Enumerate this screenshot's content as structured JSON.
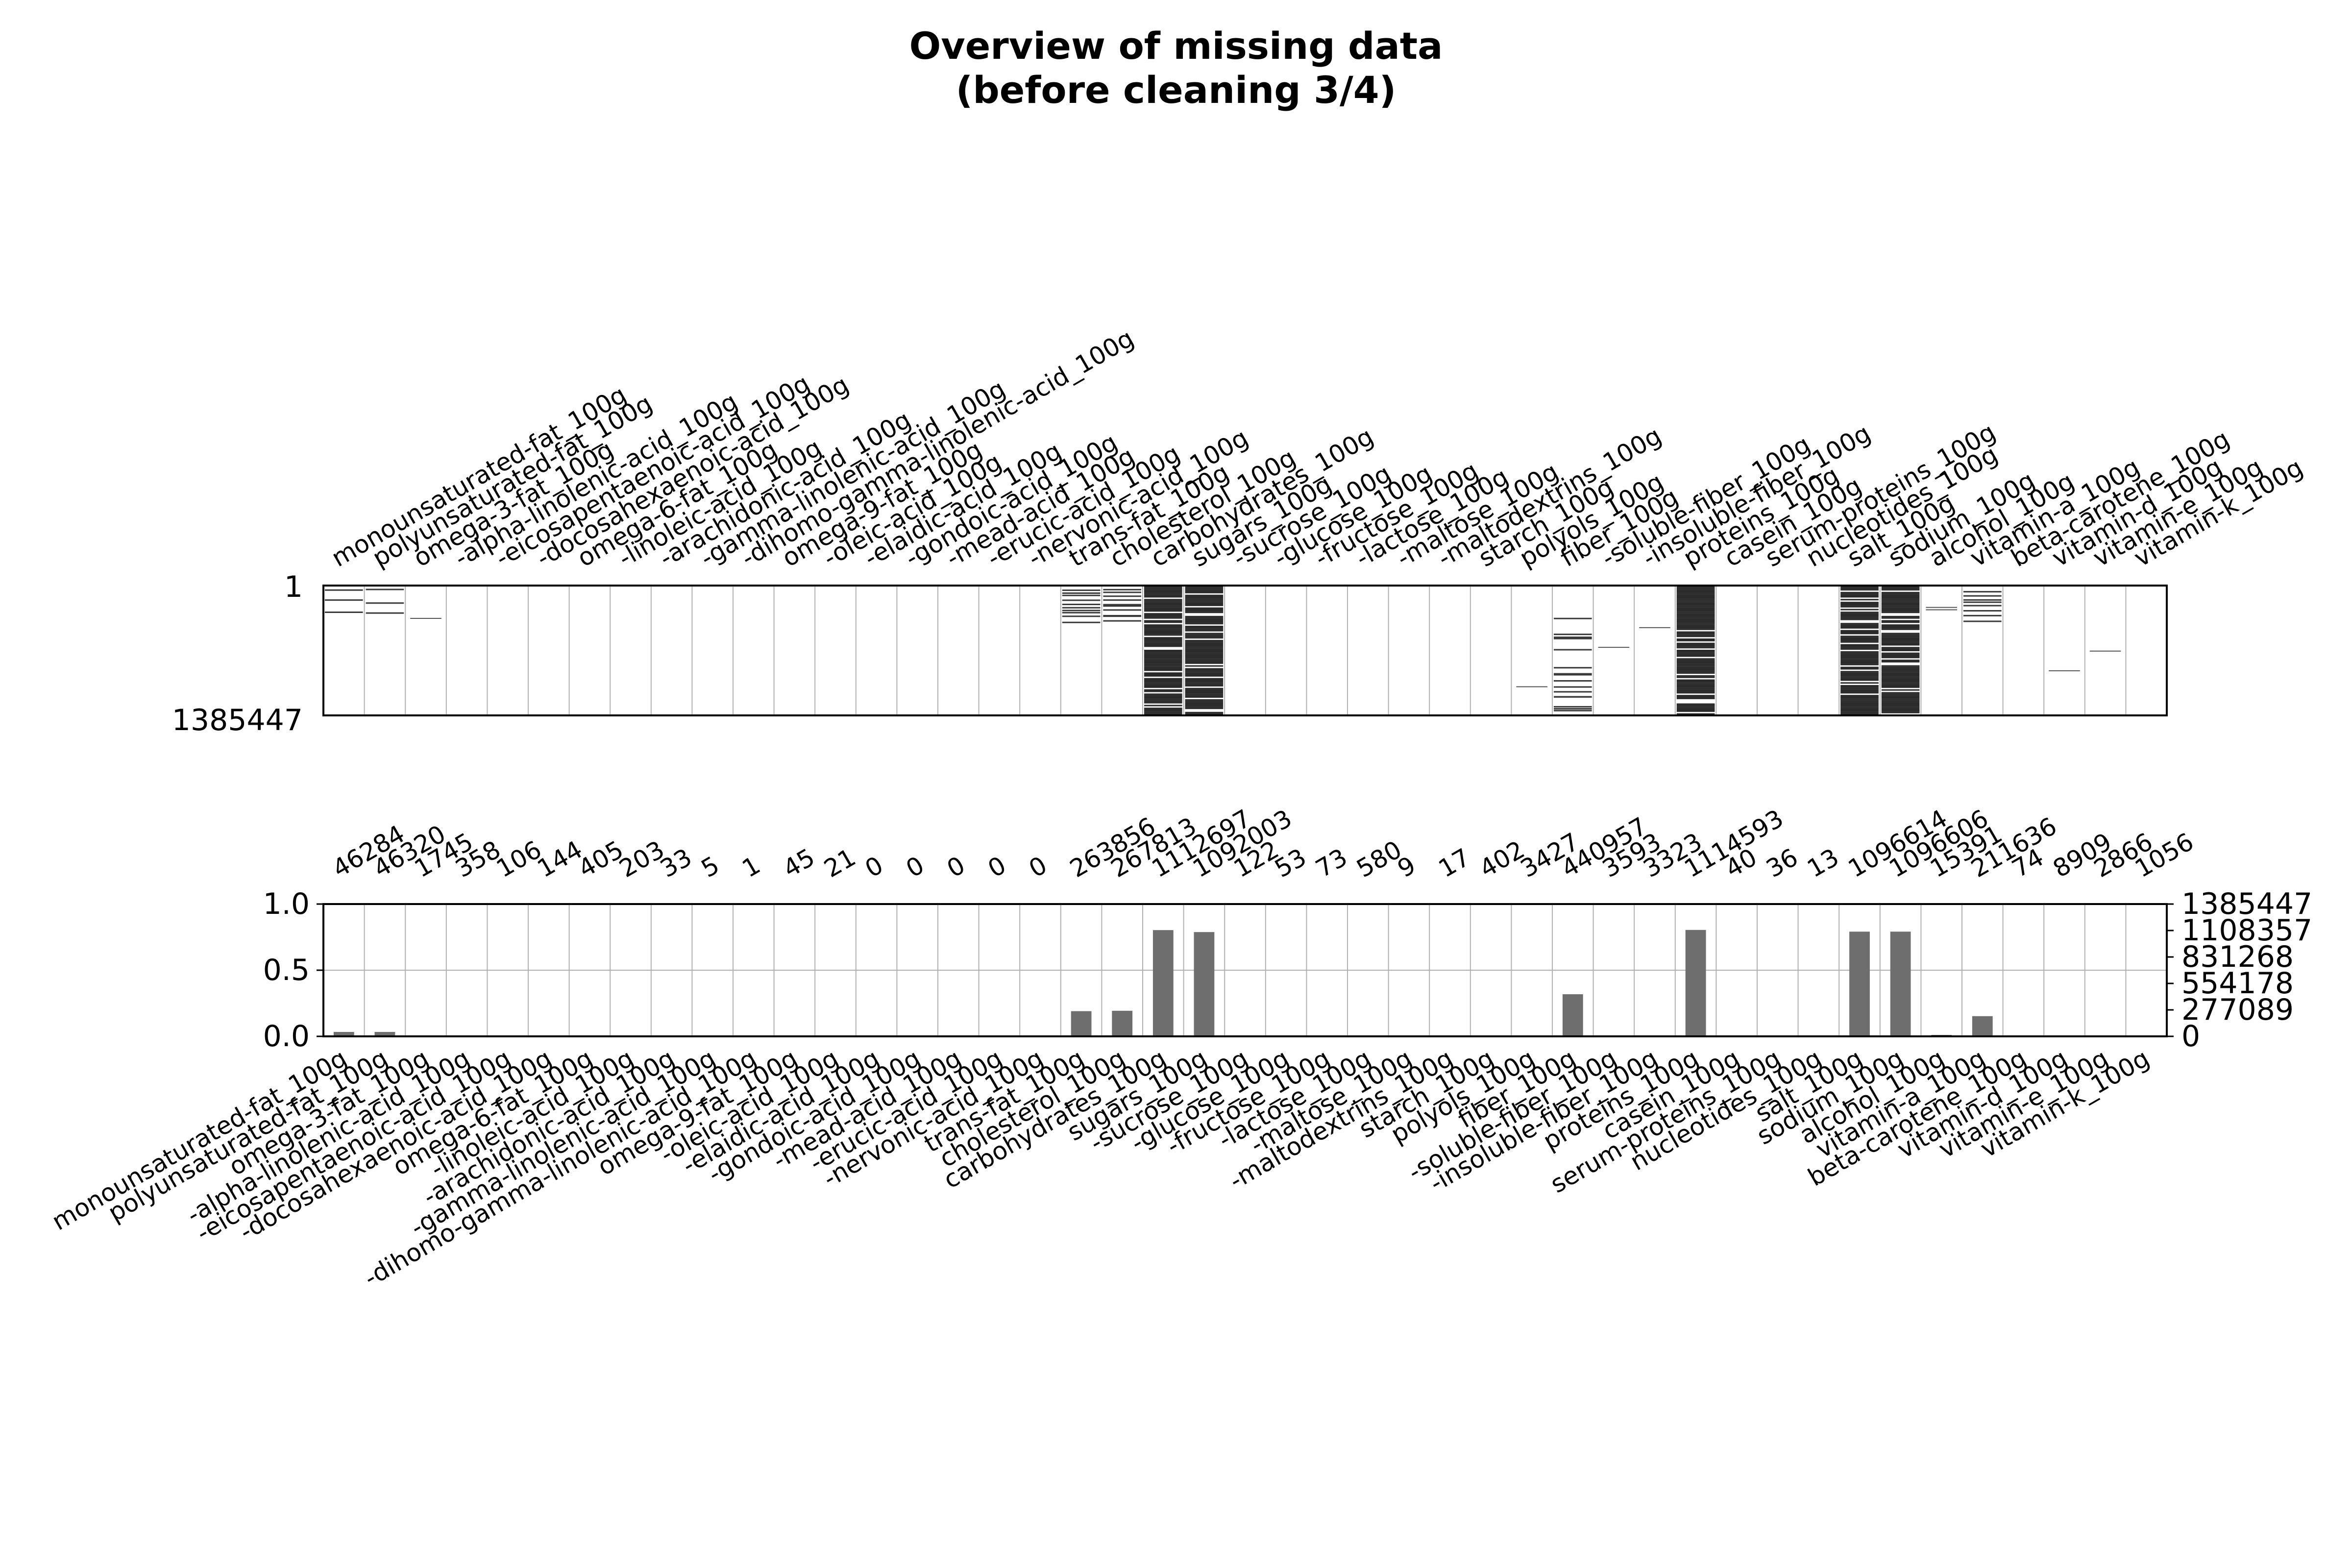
{
  "figure": {
    "title_lines": [
      "Overview of missing data",
      "(before cleaning 3/4)"
    ]
  },
  "chart_data": [
    {
      "type": "heatmap",
      "description_kind": "missingno matrix",
      "columns": [
        "monounsaturated-fat_100g",
        "polyunsaturated-fat_100g",
        "omega-3-fat_100g",
        "-alpha-linolenic-acid_100g",
        "-eicosapentaenoic-acid_100g",
        "-docosahexaenoic-acid_100g",
        "omega-6-fat_100g",
        "-linoleic-acid_100g",
        "-arachidonic-acid_100g",
        "-gamma-linolenic-acid_100g",
        "-dihomo-gamma-linolenic-acid_100g",
        "omega-9-fat_100g",
        "-oleic-acid_100g",
        "-elaidic-acid_100g",
        "-gondoic-acid_100g",
        "-mead-acid_100g",
        "-erucic-acid_100g",
        "-nervonic-acid_100g",
        "trans-fat_100g",
        "cholesterol_100g",
        "carbohydrates_100g",
        "sugars_100g",
        "-sucrose_100g",
        "-glucose_100g",
        "-fructose_100g",
        "-lactose_100g",
        "-maltose_100g",
        "-maltodextrins_100g",
        "starch_100g",
        "polyols_100g",
        "fiber_100g",
        "-soluble-fiber_100g",
        "-insoluble-fiber_100g",
        "proteins_100g",
        "casein_100g",
        "serum-proteins_100g",
        "nucleotides_100g",
        "salt_100g",
        "sodium_100g",
        "alcohol_100g",
        "vitamin-a_100g",
        "beta-carotene_100g",
        "vitamin-d_100g",
        "vitamin-e_100g",
        "vitamin-k_100g"
      ],
      "y_tick_labels": [
        "1",
        "1385447"
      ],
      "total_rows": 1385447,
      "grid": true
    },
    {
      "type": "bar",
      "categories": [
        "monounsaturated-fat_100g",
        "polyunsaturated-fat_100g",
        "omega-3-fat_100g",
        "-alpha-linolenic-acid_100g",
        "-eicosapentaenoic-acid_100g",
        "-docosahexaenoic-acid_100g",
        "omega-6-fat_100g",
        "-linoleic-acid_100g",
        "-arachidonic-acid_100g",
        "-gamma-linolenic-acid_100g",
        "-dihomo-gamma-linolenic-acid_100g",
        "omega-9-fat_100g",
        "-oleic-acid_100g",
        "-elaidic-acid_100g",
        "-gondoic-acid_100g",
        "-mead-acid_100g",
        "-erucic-acid_100g",
        "-nervonic-acid_100g",
        "trans-fat_100g",
        "cholesterol_100g",
        "carbohydrates_100g",
        "sugars_100g",
        "-sucrose_100g",
        "-glucose_100g",
        "-fructose_100g",
        "-lactose_100g",
        "-maltose_100g",
        "-maltodextrins_100g",
        "starch_100g",
        "polyols_100g",
        "fiber_100g",
        "-soluble-fiber_100g",
        "-insoluble-fiber_100g",
        "proteins_100g",
        "casein_100g",
        "serum-proteins_100g",
        "nucleotides_100g",
        "salt_100g",
        "sodium_100g",
        "alcohol_100g",
        "vitamin-a_100g",
        "beta-carotene_100g",
        "vitamin-d_100g",
        "vitamin-e_100g",
        "vitamin-k_100g"
      ],
      "values": [
        46284,
        46320,
        1745,
        358,
        106,
        144,
        405,
        203,
        33,
        5,
        1,
        45,
        21,
        0,
        0,
        0,
        0,
        0,
        263856,
        267813,
        1112697,
        1092003,
        122,
        53,
        73,
        580,
        9,
        17,
        402,
        3427,
        440957,
        3593,
        3323,
        1114593,
        40,
        36,
        13,
        1096614,
        1096606,
        15391,
        211636,
        74,
        8909,
        2866,
        1056
      ],
      "value_labels": [
        "46284",
        "46320",
        "1745",
        "358",
        "106",
        "144",
        "405",
        "203",
        "33",
        "5",
        "1",
        "45",
        "21",
        "0",
        "0",
        "0",
        "0",
        "0",
        "263856",
        "267813",
        "1112697",
        "1092003",
        "122",
        "53",
        "73",
        "580",
        "9",
        "17",
        "402",
        "3427",
        "440957",
        "3593",
        "3323",
        "1114593",
        "40",
        "36",
        "13",
        "1096614",
        "1096606",
        "15391",
        "211636",
        "74",
        "8909",
        "2866",
        "1056"
      ],
      "total": 1385447,
      "ylim": [
        0,
        1
      ],
      "left_ticks": [
        "0.0",
        "0.5",
        "1.0"
      ],
      "right_ticks": [
        "0",
        "277089",
        "554178",
        "831268",
        "1108357",
        "1385447"
      ],
      "bar_color": "#6e6e6e",
      "grid": true
    }
  ]
}
